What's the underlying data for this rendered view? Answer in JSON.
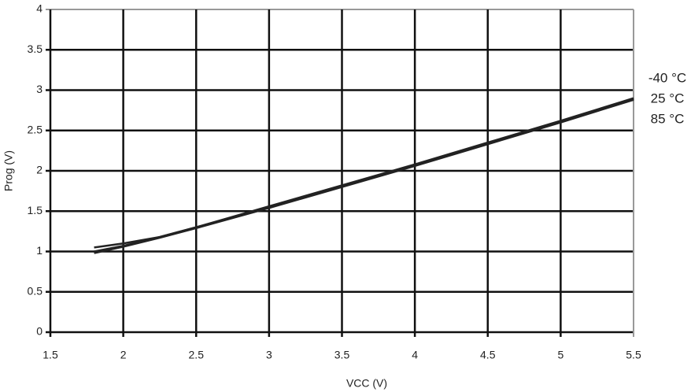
{
  "chart_data": {
    "type": "line",
    "x_label": "VCC (V)",
    "y_label": "Prog (V)",
    "x": [
      1.8,
      2,
      2.25,
      2.5,
      3,
      3.5,
      4,
      4.5,
      5,
      5.5
    ],
    "series": [
      {
        "name": "-40 °C",
        "color": "#222222",
        "values": [
          1.05,
          1.1,
          1.18,
          1.3,
          1.56,
          1.82,
          2.08,
          2.35,
          2.62,
          2.9
        ]
      },
      {
        "name": "25 °C",
        "color": "#222222",
        "values": [
          1.0,
          1.07,
          1.18,
          1.3,
          1.55,
          1.81,
          2.07,
          2.34,
          2.61,
          2.89
        ]
      },
      {
        "name": "85 °C",
        "color": "#222222",
        "values": [
          0.98,
          1.06,
          1.17,
          1.29,
          1.54,
          1.8,
          2.06,
          2.33,
          2.6,
          2.88
        ]
      }
    ],
    "xlim": [
      1.5,
      5.5
    ],
    "xticks": [
      1.5,
      2,
      2.5,
      3,
      3.5,
      4,
      4.5,
      5,
      5.5
    ],
    "ylim": [
      0,
      4
    ],
    "yticks": [
      0,
      0.5,
      1,
      1.5,
      2,
      2.5,
      3,
      3.5,
      4
    ],
    "grid": true
  }
}
